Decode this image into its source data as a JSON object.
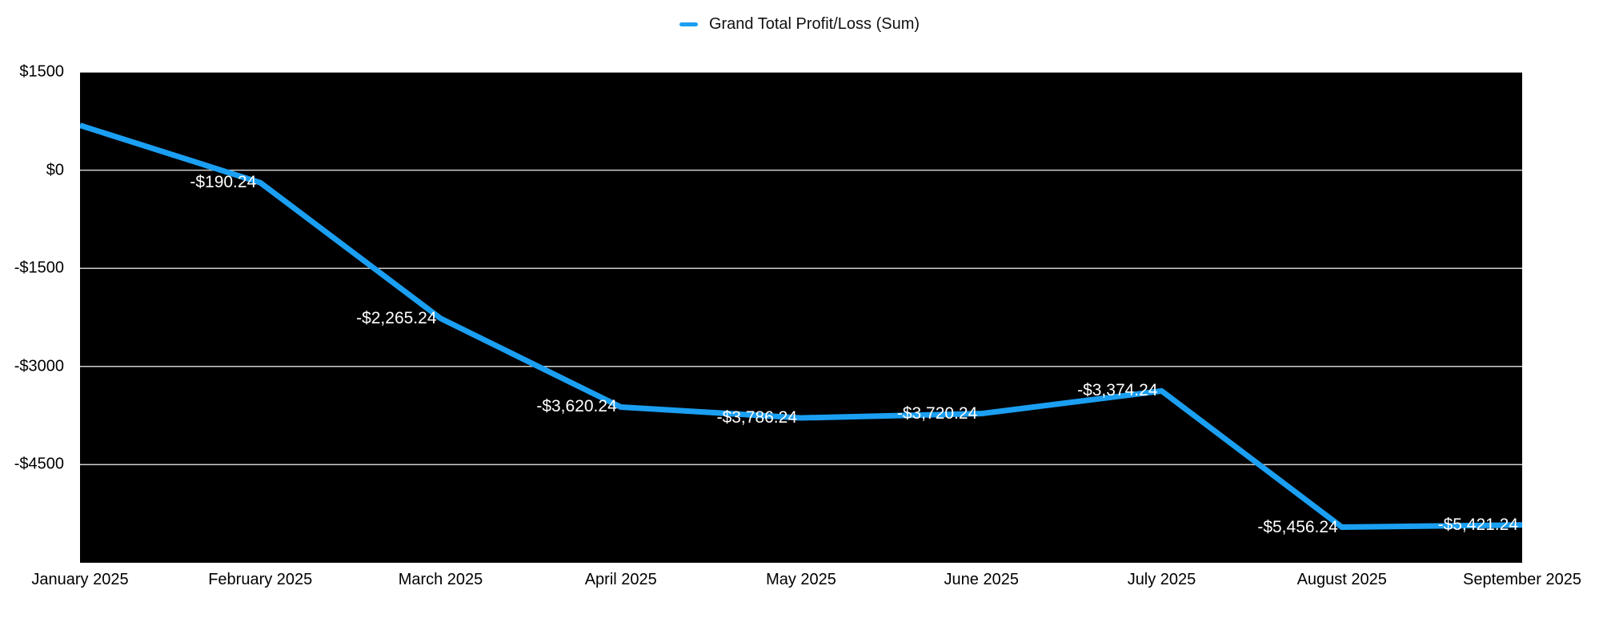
{
  "chart_data": {
    "type": "line",
    "title": "",
    "legend_label": "Grand Total Profit/Loss (Sum)",
    "legend_position": "top-center",
    "categories": [
      "January 2025",
      "February 2025",
      "March 2025",
      "April 2025",
      "May 2025",
      "June 2025",
      "July 2025",
      "August 2025",
      "September 2025"
    ],
    "series": [
      {
        "name": "Grand Total Profit/Loss (Sum)",
        "values": [
          685,
          -190.24,
          -2265.24,
          -3620.24,
          -3786.24,
          -3720.24,
          -3374.24,
          -5456.24,
          -5421.24
        ],
        "point_labels": [
          null,
          "-$190.24",
          "-$2,265.24",
          "-$3,620.24",
          "-$3,786.24",
          "-$3,720.24",
          "-$3,374.24",
          "-$5,456.24",
          "-$5,421.24"
        ]
      }
    ],
    "y_ticks": [
      {
        "value": 1500,
        "label": "$1500"
      },
      {
        "value": 0,
        "label": "$0"
      },
      {
        "value": -1500,
        "label": "-$1500"
      },
      {
        "value": -3000,
        "label": "-$3000"
      },
      {
        "value": -4500,
        "label": "-$4500"
      }
    ],
    "ylim": [
      -6000,
      1500
    ],
    "grid": "horizontal",
    "colors": {
      "line": "#1b9ff2",
      "plot_background": "#000000",
      "gridline": "#cfcfcf",
      "data_label_text": "#ffffff",
      "axis_text": "#000000",
      "page_background": "#ffffff"
    }
  }
}
